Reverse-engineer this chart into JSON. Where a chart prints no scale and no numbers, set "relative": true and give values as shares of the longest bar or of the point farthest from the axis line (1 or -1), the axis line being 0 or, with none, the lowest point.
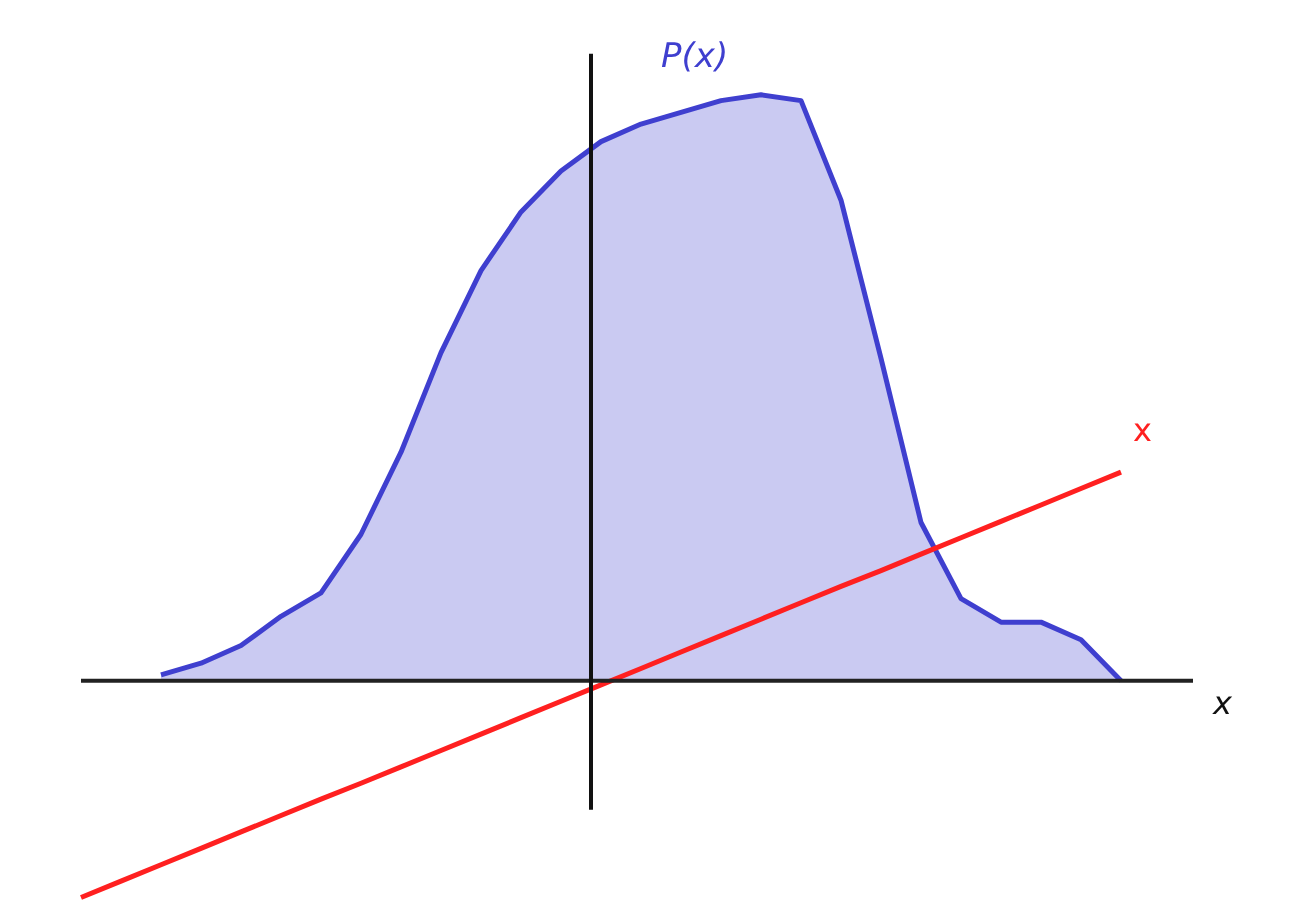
{
  "chart_data": {
    "type": "area",
    "relative": true,
    "xlabel": "x",
    "categories": [
      null,
      null,
      null,
      null,
      null,
      null,
      null,
      null,
      null,
      null,
      null,
      null,
      null,
      null,
      null,
      null,
      null,
      null,
      null,
      null,
      null,
      null,
      null,
      null,
      null,
      null,
      null
    ],
    "series": [
      {
        "name": "P(x)",
        "color": "#3f3fcf",
        "values": [
          null,
          null,
          0.01,
          0.03,
          0.06,
          0.11,
          0.15,
          0.25,
          0.39,
          0.56,
          0.7,
          0.8,
          0.87,
          0.92,
          0.95,
          0.97,
          0.99,
          1.0,
          0.99,
          0.82,
          0.55,
          0.27,
          0.14,
          0.1,
          0.1,
          0.07,
          0
        ]
      },
      {
        "name": "x",
        "type": "line",
        "color": "#ff2020",
        "values": [
          -0.37,
          -0.342,
          -0.314,
          -0.286,
          -0.258,
          -0.23,
          -0.202,
          -0.175,
          -0.147,
          -0.119,
          -0.091,
          -0.063,
          -0.035,
          -0.007,
          0.021,
          0.049,
          0.077,
          0.105,
          0.133,
          0.161,
          0.188,
          0.216,
          0.244,
          0.272,
          0.3,
          0.328,
          0.356
        ]
      }
    ]
  }
}
